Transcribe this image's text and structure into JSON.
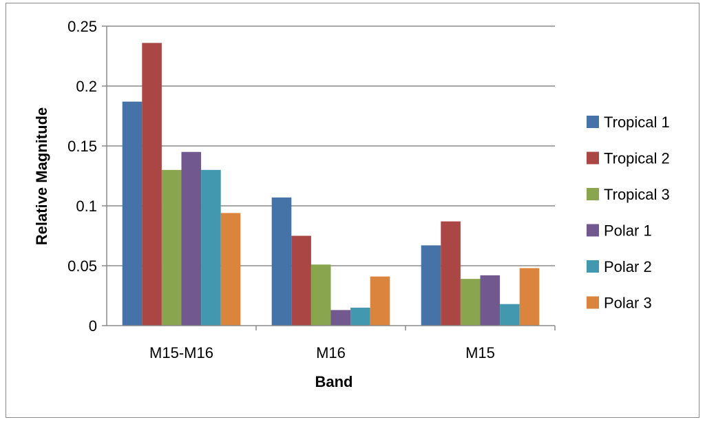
{
  "chart_data": {
    "type": "bar",
    "title": "",
    "xlabel": "Band",
    "ylabel": "Relative Magnitude",
    "categories": [
      "M15-M16",
      "M16",
      "M15"
    ],
    "ylim": [
      0,
      0.25
    ],
    "yticks": [
      0,
      0.05,
      0.1,
      0.15,
      0.2,
      0.25
    ],
    "ytick_labels": [
      "0",
      "0.05",
      "0.1",
      "0.15",
      "0.2",
      "0.25"
    ],
    "grid": "horizontal",
    "legend_position": "right",
    "series": [
      {
        "name": "Tropical 1",
        "color": "#4572A7",
        "values": [
          0.187,
          0.107,
          0.067
        ]
      },
      {
        "name": "Tropical 2",
        "color": "#AA4643",
        "values": [
          0.236,
          0.075,
          0.087
        ]
      },
      {
        "name": "Tropical 3",
        "color": "#89A54E",
        "values": [
          0.13,
          0.051,
          0.039
        ]
      },
      {
        "name": "Polar 1",
        "color": "#71588F",
        "values": [
          0.145,
          0.013,
          0.042
        ]
      },
      {
        "name": "Polar 2",
        "color": "#4198AF",
        "values": [
          0.13,
          0.015,
          0.018
        ]
      },
      {
        "name": "Polar 3",
        "color": "#DB843D",
        "values": [
          0.094,
          0.041,
          0.048
        ]
      }
    ]
  }
}
